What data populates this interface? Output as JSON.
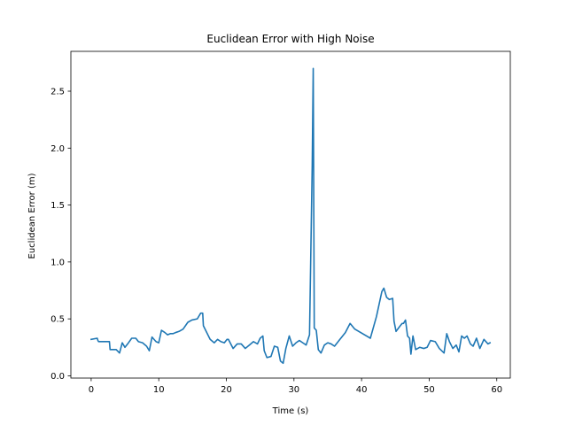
{
  "chart_data": {
    "type": "line",
    "title": "Euclidean Error with High Noise",
    "xlabel": "Time (s)",
    "ylabel": "Euclidean Error (m)",
    "xlim": [
      -3,
      62
    ],
    "ylim": [
      -0.02,
      2.85
    ],
    "xticks": [
      0,
      10,
      20,
      30,
      40,
      50,
      60
    ],
    "xtick_labels": [
      "0",
      "10",
      "20",
      "30",
      "40",
      "50",
      "60"
    ],
    "yticks": [
      0.0,
      0.5,
      1.0,
      1.5,
      2.0,
      2.5
    ],
    "ytick_labels": [
      "0.0",
      "0.5",
      "1.0",
      "1.5",
      "2.0",
      "2.5"
    ],
    "grid": false,
    "series": [
      {
        "color": "#1f77b4",
        "x": [
          0,
          0.9,
          1.0,
          1.1,
          2.7,
          2.8,
          3.7,
          4.2,
          4.6,
          5.0,
          5.4,
          6.0,
          6.6,
          7.0,
          7.6,
          8.2,
          8.6,
          9.0,
          9.6,
          10.0,
          10.4,
          10.9,
          11.3,
          11.7,
          12.1,
          12.5,
          13.0,
          13.6,
          14.3,
          14.9,
          15.7,
          16.2,
          16.5,
          16.6,
          17.6,
          18.2,
          18.7,
          19.2,
          19.7,
          20.1,
          20.3,
          21.0,
          21.6,
          22.2,
          22.8,
          23.4,
          24.0,
          24.6,
          25.0,
          25.4,
          25.6,
          26.0,
          26.6,
          27.1,
          27.6,
          28.0,
          28.4,
          28.8,
          29.3,
          29.8,
          30.3,
          30.8,
          31.3,
          31.8,
          32.3,
          32.7,
          32.85,
          33.0,
          33.3,
          33.6,
          34.0,
          34.5,
          35.0,
          35.5,
          36.0,
          36.8,
          37.6,
          38.3,
          39.0,
          41.3,
          42.2,
          43.0,
          43.3,
          43.7,
          44.1,
          44.6,
          44.8,
          45.1,
          45.6,
          46.0,
          46.2,
          46.5,
          46.8,
          47.1,
          47.3,
          47.6,
          48.0,
          48.6,
          49.2,
          49.7,
          50.2,
          50.9,
          51.5,
          52.2,
          52.6,
          53.0,
          53.5,
          54.0,
          54.4,
          54.8,
          55.2,
          55.6,
          56.1,
          56.5,
          57.0,
          57.5,
          58.1,
          58.7,
          59.0
        ],
        "y": [
          0.32,
          0.33,
          0.31,
          0.3,
          0.3,
          0.23,
          0.23,
          0.2,
          0.29,
          0.25,
          0.28,
          0.33,
          0.33,
          0.3,
          0.29,
          0.26,
          0.22,
          0.34,
          0.3,
          0.29,
          0.4,
          0.38,
          0.36,
          0.37,
          0.37,
          0.38,
          0.39,
          0.41,
          0.47,
          0.49,
          0.5,
          0.55,
          0.55,
          0.44,
          0.32,
          0.29,
          0.32,
          0.3,
          0.29,
          0.32,
          0.32,
          0.24,
          0.28,
          0.28,
          0.24,
          0.27,
          0.3,
          0.28,
          0.33,
          0.35,
          0.22,
          0.16,
          0.17,
          0.26,
          0.25,
          0.13,
          0.11,
          0.24,
          0.35,
          0.26,
          0.29,
          0.31,
          0.29,
          0.27,
          0.36,
          1.85,
          2.7,
          0.42,
          0.4,
          0.23,
          0.2,
          0.27,
          0.29,
          0.28,
          0.26,
          0.32,
          0.38,
          0.46,
          0.41,
          0.33,
          0.52,
          0.74,
          0.77,
          0.69,
          0.67,
          0.68,
          0.48,
          0.39,
          0.43,
          0.46,
          0.46,
          0.49,
          0.35,
          0.33,
          0.19,
          0.35,
          0.23,
          0.25,
          0.24,
          0.25,
          0.31,
          0.3,
          0.24,
          0.2,
          0.37,
          0.3,
          0.24,
          0.27,
          0.21,
          0.35,
          0.33,
          0.35,
          0.28,
          0.26,
          0.33,
          0.24,
          0.32,
          0.28,
          0.29
        ]
      }
    ]
  }
}
